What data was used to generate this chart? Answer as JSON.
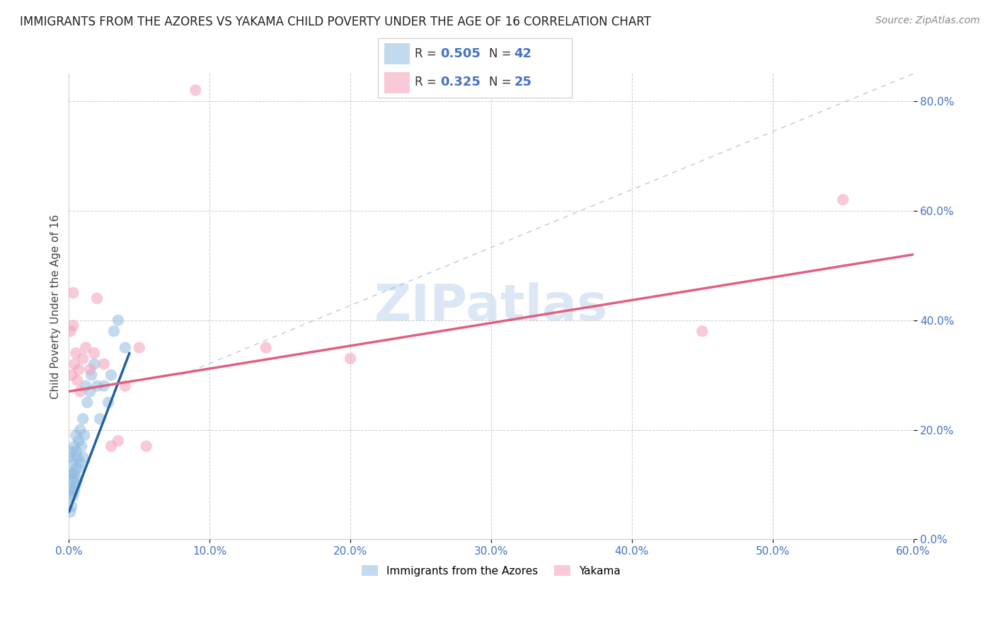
{
  "title": "IMMIGRANTS FROM THE AZORES VS YAKAMA CHILD POVERTY UNDER THE AGE OF 16 CORRELATION CHART",
  "source": "Source: ZipAtlas.com",
  "ylabel_label": "Child Poverty Under the Age of 16",
  "legend_labels": [
    "Immigrants from the Azores",
    "Yakama"
  ],
  "watermark": "ZIPatlas",
  "blue_R": "0.505",
  "blue_N": "42",
  "pink_R": "0.325",
  "pink_N": "25",
  "blue_scatter_x": [
    0.001,
    0.001,
    0.001,
    0.001,
    0.001,
    0.002,
    0.002,
    0.002,
    0.002,
    0.003,
    0.003,
    0.003,
    0.004,
    0.004,
    0.004,
    0.005,
    0.005,
    0.005,
    0.005,
    0.006,
    0.006,
    0.007,
    0.007,
    0.008,
    0.008,
    0.009,
    0.01,
    0.01,
    0.011,
    0.012,
    0.013,
    0.015,
    0.016,
    0.018,
    0.02,
    0.022,
    0.025,
    0.028,
    0.03,
    0.032,
    0.035,
    0.04
  ],
  "blue_scatter_y": [
    0.05,
    0.08,
    0.1,
    0.12,
    0.15,
    0.06,
    0.09,
    0.12,
    0.16,
    0.08,
    0.11,
    0.14,
    0.09,
    0.12,
    0.17,
    0.1,
    0.13,
    0.16,
    0.19,
    0.11,
    0.15,
    0.13,
    0.18,
    0.14,
    0.2,
    0.17,
    0.15,
    0.22,
    0.19,
    0.28,
    0.25,
    0.27,
    0.3,
    0.32,
    0.28,
    0.22,
    0.28,
    0.25,
    0.3,
    0.38,
    0.4,
    0.35
  ],
  "pink_scatter_x": [
    0.001,
    0.002,
    0.003,
    0.003,
    0.004,
    0.005,
    0.006,
    0.007,
    0.008,
    0.01,
    0.012,
    0.015,
    0.018,
    0.02,
    0.025,
    0.03,
    0.035,
    0.04,
    0.05,
    0.055,
    0.09,
    0.14,
    0.2,
    0.45,
    0.55
  ],
  "pink_scatter_y": [
    0.38,
    0.3,
    0.39,
    0.45,
    0.32,
    0.34,
    0.29,
    0.31,
    0.27,
    0.33,
    0.35,
    0.31,
    0.34,
    0.44,
    0.32,
    0.17,
    0.18,
    0.28,
    0.35,
    0.17,
    0.82,
    0.35,
    0.33,
    0.38,
    0.62
  ],
  "blue_line_x": [
    0.0,
    0.043
  ],
  "blue_line_y": [
    0.05,
    0.34
  ],
  "pink_line_x": [
    0.0,
    0.6
  ],
  "pink_line_y": [
    0.27,
    0.52
  ],
  "diag_line_x": [
    0.08,
    0.6
  ],
  "diag_line_y": [
    0.3,
    0.85
  ],
  "xlim": [
    0.0,
    0.6
  ],
  "ylim": [
    0.0,
    0.85
  ],
  "xtick_vals": [
    0.0,
    0.1,
    0.2,
    0.3,
    0.4,
    0.5,
    0.6
  ],
  "ytick_vals": [
    0.0,
    0.2,
    0.4,
    0.6,
    0.8
  ],
  "blue_color": "#90bce0",
  "pink_color": "#f4a0b8",
  "blue_line_color": "#2060a0",
  "pink_line_color": "#e06080",
  "diag_line_color": "#90b8d8",
  "tick_color": "#4472c4",
  "title_fontsize": 12,
  "source_fontsize": 10,
  "ylabel_fontsize": 11,
  "tick_fontsize": 11
}
